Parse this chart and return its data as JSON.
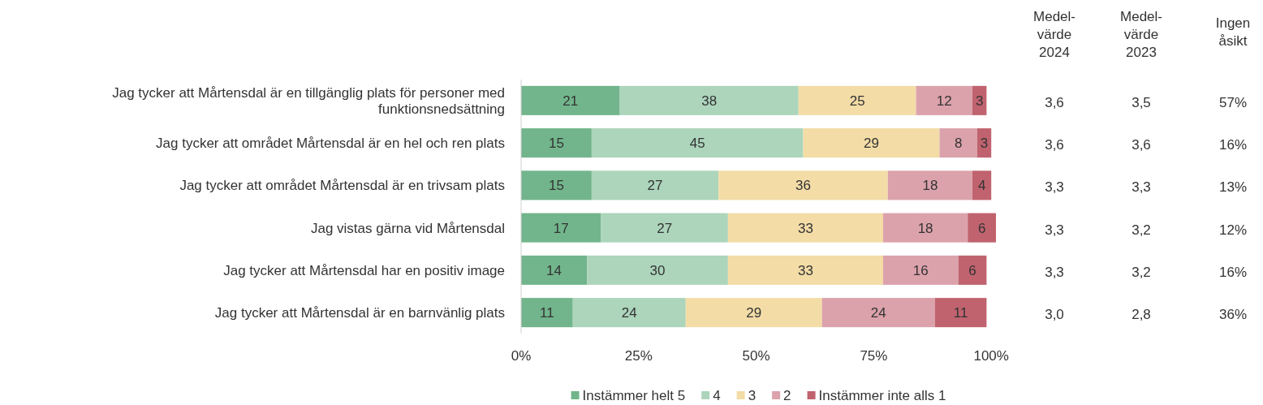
{
  "chart_data": {
    "type": "bar",
    "orientation": "horizontal",
    "stacked": true,
    "data_labels": true,
    "legend": "bottom",
    "grid": false,
    "categories": [
      "Jag tycker att Mårtensdal är en tillgänglig plats för personer med funktionsnedsättning",
      "Jag tycker att området Mårtensdal är en hel och ren plats",
      "Jag tycker att området Mårtensdal är en trivsam plats",
      "Jag vistas gärna vid Mårtensdal",
      "Jag tycker att Mårtensdal har en positiv image",
      "Jag tycker att Mårtensdal är en barnvänlig plats"
    ],
    "series": [
      {
        "name": "Instämmer helt 5",
        "color": "#72b58c",
        "values": [
          21,
          15,
          15,
          17,
          14,
          11
        ]
      },
      {
        "name": "4",
        "color": "#acd5bb",
        "values": [
          38,
          45,
          27,
          27,
          30,
          24
        ]
      },
      {
        "name": "3",
        "color": "#f3dca6",
        "values": [
          25,
          29,
          36,
          33,
          33,
          29
        ]
      },
      {
        "name": "2",
        "color": "#dca2ab",
        "values": [
          12,
          8,
          18,
          18,
          16,
          24
        ]
      },
      {
        "name": "Instämmer inte alls 1",
        "color": "#c0636f",
        "values": [
          3,
          3,
          4,
          6,
          6,
          11
        ]
      }
    ],
    "xlim": [
      0,
      101
    ],
    "xticks": [
      {
        "value": 0,
        "label": "0%"
      },
      {
        "value": 25,
        "label": "25%"
      },
      {
        "value": 50,
        "label": "50%"
      },
      {
        "value": 75,
        "label": "75%"
      },
      {
        "value": 100,
        "label": "100%"
      }
    ],
    "annotations": [
      "Medel-värde 2024",
      "Medel-värde 2023",
      "Ingen åsikt",
      "3,6",
      "3,5",
      "57%",
      "3,6",
      "3,6",
      "16%",
      "3,3",
      "3,3",
      "13%",
      "3,3",
      "3,2",
      "12%",
      "3,3",
      "3,2",
      "16%",
      "3,0",
      "2,8",
      "36%"
    ]
  }
}
